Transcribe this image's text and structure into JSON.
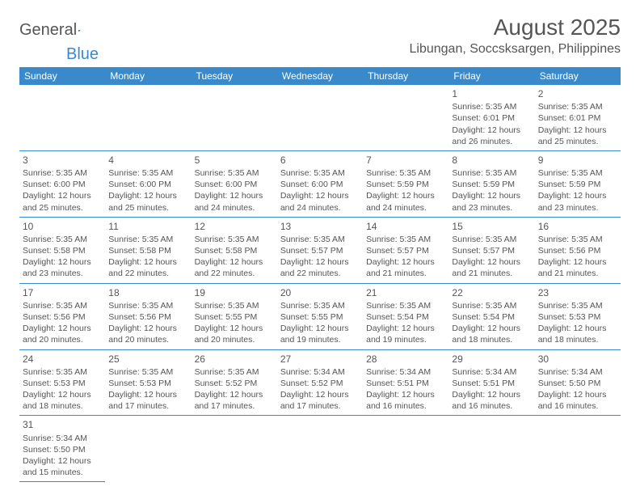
{
  "logo": {
    "text1": "General",
    "text2": "Blue"
  },
  "title": "August 2025",
  "location": "Libungan, Soccsksargen, Philippines",
  "weekdays": [
    "Sunday",
    "Monday",
    "Tuesday",
    "Wednesday",
    "Thursday",
    "Friday",
    "Saturday"
  ],
  "colors": {
    "header_bg": "#3a8acb",
    "header_text": "#ffffff",
    "border": "#3a8acb",
    "text": "#555555",
    "logo_blue": "#3a8acb"
  },
  "cells": [
    [
      null,
      null,
      null,
      null,
      null,
      {
        "n": "1",
        "sr": "Sunrise: 5:35 AM",
        "ss": "Sunset: 6:01 PM",
        "d1": "Daylight: 12 hours",
        "d2": "and 26 minutes."
      },
      {
        "n": "2",
        "sr": "Sunrise: 5:35 AM",
        "ss": "Sunset: 6:01 PM",
        "d1": "Daylight: 12 hours",
        "d2": "and 25 minutes."
      }
    ],
    [
      {
        "n": "3",
        "sr": "Sunrise: 5:35 AM",
        "ss": "Sunset: 6:00 PM",
        "d1": "Daylight: 12 hours",
        "d2": "and 25 minutes."
      },
      {
        "n": "4",
        "sr": "Sunrise: 5:35 AM",
        "ss": "Sunset: 6:00 PM",
        "d1": "Daylight: 12 hours",
        "d2": "and 25 minutes."
      },
      {
        "n": "5",
        "sr": "Sunrise: 5:35 AM",
        "ss": "Sunset: 6:00 PM",
        "d1": "Daylight: 12 hours",
        "d2": "and 24 minutes."
      },
      {
        "n": "6",
        "sr": "Sunrise: 5:35 AM",
        "ss": "Sunset: 6:00 PM",
        "d1": "Daylight: 12 hours",
        "d2": "and 24 minutes."
      },
      {
        "n": "7",
        "sr": "Sunrise: 5:35 AM",
        "ss": "Sunset: 5:59 PM",
        "d1": "Daylight: 12 hours",
        "d2": "and 24 minutes."
      },
      {
        "n": "8",
        "sr": "Sunrise: 5:35 AM",
        "ss": "Sunset: 5:59 PM",
        "d1": "Daylight: 12 hours",
        "d2": "and 23 minutes."
      },
      {
        "n": "9",
        "sr": "Sunrise: 5:35 AM",
        "ss": "Sunset: 5:59 PM",
        "d1": "Daylight: 12 hours",
        "d2": "and 23 minutes."
      }
    ],
    [
      {
        "n": "10",
        "sr": "Sunrise: 5:35 AM",
        "ss": "Sunset: 5:58 PM",
        "d1": "Daylight: 12 hours",
        "d2": "and 23 minutes."
      },
      {
        "n": "11",
        "sr": "Sunrise: 5:35 AM",
        "ss": "Sunset: 5:58 PM",
        "d1": "Daylight: 12 hours",
        "d2": "and 22 minutes."
      },
      {
        "n": "12",
        "sr": "Sunrise: 5:35 AM",
        "ss": "Sunset: 5:58 PM",
        "d1": "Daylight: 12 hours",
        "d2": "and 22 minutes."
      },
      {
        "n": "13",
        "sr": "Sunrise: 5:35 AM",
        "ss": "Sunset: 5:57 PM",
        "d1": "Daylight: 12 hours",
        "d2": "and 22 minutes."
      },
      {
        "n": "14",
        "sr": "Sunrise: 5:35 AM",
        "ss": "Sunset: 5:57 PM",
        "d1": "Daylight: 12 hours",
        "d2": "and 21 minutes."
      },
      {
        "n": "15",
        "sr": "Sunrise: 5:35 AM",
        "ss": "Sunset: 5:57 PM",
        "d1": "Daylight: 12 hours",
        "d2": "and 21 minutes."
      },
      {
        "n": "16",
        "sr": "Sunrise: 5:35 AM",
        "ss": "Sunset: 5:56 PM",
        "d1": "Daylight: 12 hours",
        "d2": "and 21 minutes."
      }
    ],
    [
      {
        "n": "17",
        "sr": "Sunrise: 5:35 AM",
        "ss": "Sunset: 5:56 PM",
        "d1": "Daylight: 12 hours",
        "d2": "and 20 minutes."
      },
      {
        "n": "18",
        "sr": "Sunrise: 5:35 AM",
        "ss": "Sunset: 5:56 PM",
        "d1": "Daylight: 12 hours",
        "d2": "and 20 minutes."
      },
      {
        "n": "19",
        "sr": "Sunrise: 5:35 AM",
        "ss": "Sunset: 5:55 PM",
        "d1": "Daylight: 12 hours",
        "d2": "and 20 minutes."
      },
      {
        "n": "20",
        "sr": "Sunrise: 5:35 AM",
        "ss": "Sunset: 5:55 PM",
        "d1": "Daylight: 12 hours",
        "d2": "and 19 minutes."
      },
      {
        "n": "21",
        "sr": "Sunrise: 5:35 AM",
        "ss": "Sunset: 5:54 PM",
        "d1": "Daylight: 12 hours",
        "d2": "and 19 minutes."
      },
      {
        "n": "22",
        "sr": "Sunrise: 5:35 AM",
        "ss": "Sunset: 5:54 PM",
        "d1": "Daylight: 12 hours",
        "d2": "and 18 minutes."
      },
      {
        "n": "23",
        "sr": "Sunrise: 5:35 AM",
        "ss": "Sunset: 5:53 PM",
        "d1": "Daylight: 12 hours",
        "d2": "and 18 minutes."
      }
    ],
    [
      {
        "n": "24",
        "sr": "Sunrise: 5:35 AM",
        "ss": "Sunset: 5:53 PM",
        "d1": "Daylight: 12 hours",
        "d2": "and 18 minutes."
      },
      {
        "n": "25",
        "sr": "Sunrise: 5:35 AM",
        "ss": "Sunset: 5:53 PM",
        "d1": "Daylight: 12 hours",
        "d2": "and 17 minutes."
      },
      {
        "n": "26",
        "sr": "Sunrise: 5:35 AM",
        "ss": "Sunset: 5:52 PM",
        "d1": "Daylight: 12 hours",
        "d2": "and 17 minutes."
      },
      {
        "n": "27",
        "sr": "Sunrise: 5:34 AM",
        "ss": "Sunset: 5:52 PM",
        "d1": "Daylight: 12 hours",
        "d2": "and 17 minutes."
      },
      {
        "n": "28",
        "sr": "Sunrise: 5:34 AM",
        "ss": "Sunset: 5:51 PM",
        "d1": "Daylight: 12 hours",
        "d2": "and 16 minutes."
      },
      {
        "n": "29",
        "sr": "Sunrise: 5:34 AM",
        "ss": "Sunset: 5:51 PM",
        "d1": "Daylight: 12 hours",
        "d2": "and 16 minutes."
      },
      {
        "n": "30",
        "sr": "Sunrise: 5:34 AM",
        "ss": "Sunset: 5:50 PM",
        "d1": "Daylight: 12 hours",
        "d2": "and 16 minutes."
      }
    ],
    [
      {
        "n": "31",
        "sr": "Sunrise: 5:34 AM",
        "ss": "Sunset: 5:50 PM",
        "d1": "Daylight: 12 hours",
        "d2": "and 15 minutes."
      },
      null,
      null,
      null,
      null,
      null,
      null
    ]
  ]
}
